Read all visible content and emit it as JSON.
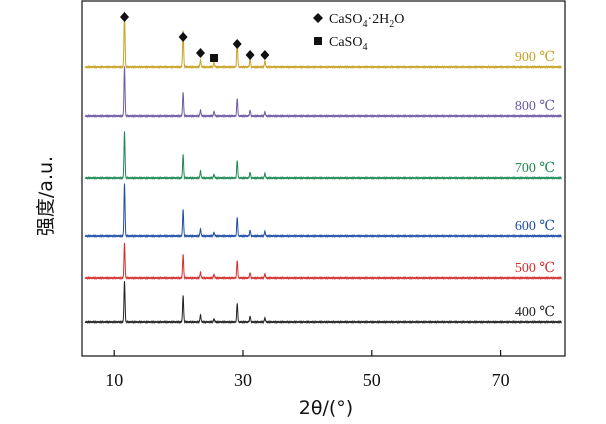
{
  "chart_data": {
    "type": "line",
    "xlabel": "2θ/(°)",
    "ylabel": "强度/a.u.",
    "xlim": [
      5,
      80
    ],
    "xticks": [
      10,
      30,
      50,
      70
    ],
    "grid": false,
    "legend": {
      "placement": "top-right",
      "entries": [
        {
          "marker": "diamond",
          "label_main": "CaSO",
          "label_sub1": "4",
          "label_mid": "·2H",
          "label_sub2": "2",
          "label_end": "O"
        },
        {
          "marker": "square",
          "label_main": "CaSO",
          "label_sub1": "4",
          "label_mid": "",
          "label_sub2": "",
          "label_end": ""
        }
      ]
    },
    "peaks_2theta": [
      11.6,
      20.7,
      23.4,
      29.1,
      31.1,
      33.4
    ],
    "series": [
      {
        "name": "900 ℃",
        "color": "#c9a227",
        "peaks": [
          {
            "x": 11.6,
            "y": 0.95
          },
          {
            "x": 20.7,
            "y": 0.62
          },
          {
            "x": 23.4,
            "y": 0.12
          },
          {
            "x": 25.5,
            "y": 0.08
          },
          {
            "x": 29.1,
            "y": 0.45
          },
          {
            "x": 31.1,
            "y": 0.14
          },
          {
            "x": 33.4,
            "y": 0.1
          }
        ]
      },
      {
        "name": "800 ℃",
        "color": "#6e5aa8",
        "peaks": [
          {
            "x": 11.6,
            "y": 0.85
          },
          {
            "x": 20.7,
            "y": 0.4
          },
          {
            "x": 23.4,
            "y": 0.1
          },
          {
            "x": 25.5,
            "y": 0.08
          },
          {
            "x": 29.1,
            "y": 0.3
          },
          {
            "x": 31.1,
            "y": 0.1
          },
          {
            "x": 33.4,
            "y": 0.07
          }
        ]
      },
      {
        "name": "700 ℃",
        "color": "#1f8a55",
        "peaks": [
          {
            "x": 11.6,
            "y": 0.8
          },
          {
            "x": 20.7,
            "y": 0.4
          },
          {
            "x": 23.4,
            "y": 0.12
          },
          {
            "x": 25.5,
            "y": 0.06
          },
          {
            "x": 29.1,
            "y": 0.3
          },
          {
            "x": 31.1,
            "y": 0.1
          },
          {
            "x": 33.4,
            "y": 0.08
          }
        ]
      },
      {
        "name": "600 ℃",
        "color": "#1f4fa8",
        "peaks": [
          {
            "x": 11.6,
            "y": 0.9
          },
          {
            "x": 20.7,
            "y": 0.45
          },
          {
            "x": 23.4,
            "y": 0.12
          },
          {
            "x": 25.5,
            "y": 0.06
          },
          {
            "x": 29.1,
            "y": 0.32
          },
          {
            "x": 31.1,
            "y": 0.1
          },
          {
            "x": 33.4,
            "y": 0.08
          }
        ]
      },
      {
        "name": "500 ℃",
        "color": "#d62f2f",
        "peaks": [
          {
            "x": 11.6,
            "y": 0.6
          },
          {
            "x": 20.7,
            "y": 0.4
          },
          {
            "x": 23.4,
            "y": 0.1
          },
          {
            "x": 25.5,
            "y": 0.06
          },
          {
            "x": 29.1,
            "y": 0.3
          },
          {
            "x": 31.1,
            "y": 0.09
          },
          {
            "x": 33.4,
            "y": 0.07
          }
        ]
      },
      {
        "name": "400 ℃",
        "color": "#222222",
        "peaks": [
          {
            "x": 11.6,
            "y": 0.7
          },
          {
            "x": 20.7,
            "y": 0.45
          },
          {
            "x": 23.4,
            "y": 0.12
          },
          {
            "x": 25.5,
            "y": 0.05
          },
          {
            "x": 29.1,
            "y": 0.32
          },
          {
            "x": 31.1,
            "y": 0.1
          },
          {
            "x": 33.4,
            "y": 0.07
          }
        ]
      }
    ]
  }
}
